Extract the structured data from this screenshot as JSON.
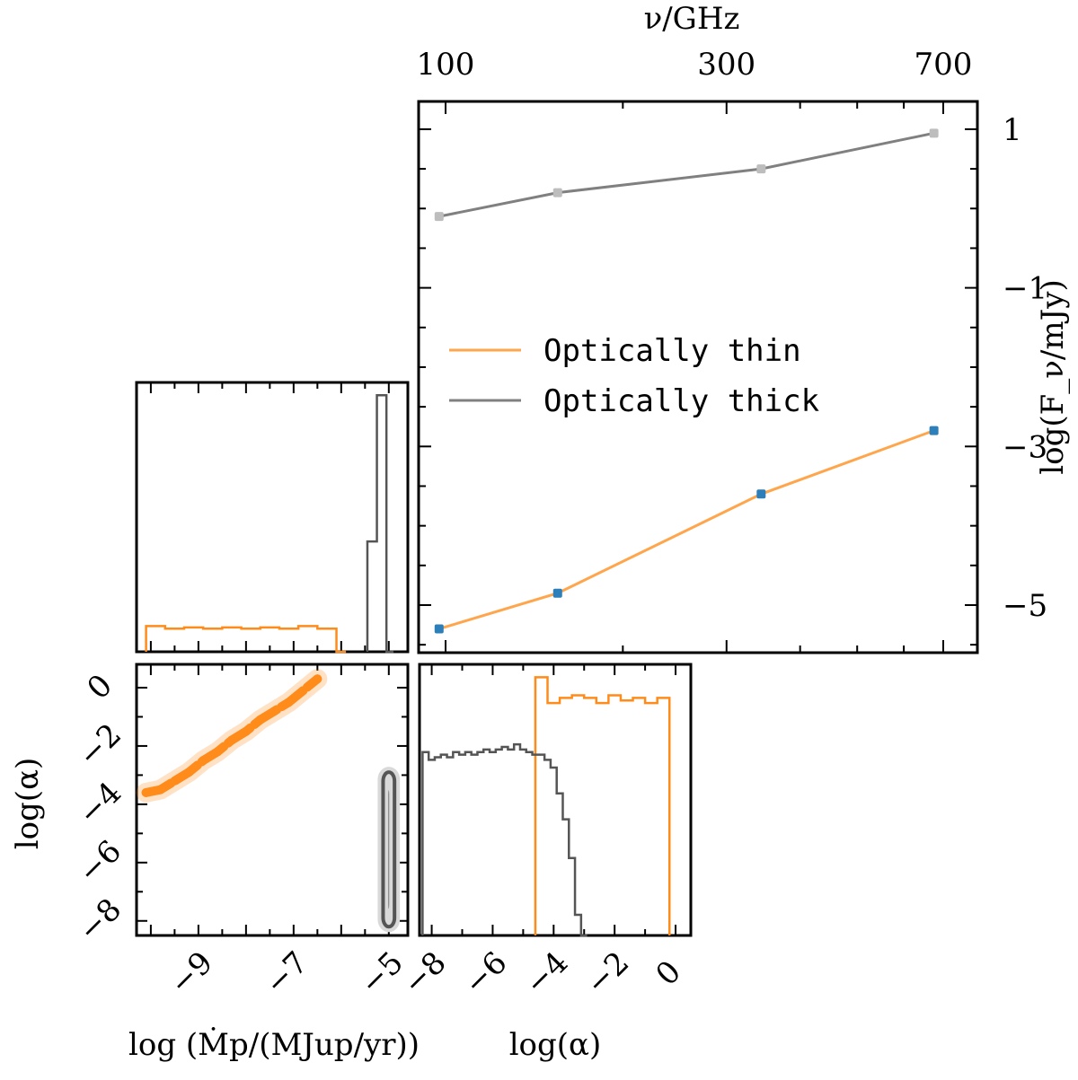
{
  "colors": {
    "thin": "#ff8c1a",
    "thick": "#555555",
    "thin_line": "#ffa64d",
    "thick_line": "#808080",
    "thin_marker": "#2c7fb8",
    "thick_marker": "#bdbdbd"
  },
  "chart_data": [
    {
      "id": "sed",
      "type": "line",
      "xlabel": "ν/GHz",
      "ylabel": "log(F_ν/mJy)",
      "x_scale": "log",
      "x_axis_position": "top",
      "y_axis_position": "right",
      "xlim": [
        90,
        800
      ],
      "ylim": [
        -5.6,
        1.35
      ],
      "x_ticks": [
        100,
        300,
        700
      ],
      "x_tick_labels": [
        "100",
        "300",
        "700"
      ],
      "y_ticks": [
        1,
        -1,
        -3,
        -5
      ],
      "y_tick_labels": [
        "1",
        "−1",
        "−3",
        "−5"
      ],
      "legend": {
        "placement": "center",
        "entries": [
          {
            "label": "Optically thin",
            "color": "#ffa64d"
          },
          {
            "label": "Optically thick",
            "color": "#808080"
          }
        ]
      },
      "series": [
        {
          "name": "Optically thin",
          "color": "#ffa64d",
          "marker_color": "#2c7fb8",
          "x": [
            97.5,
            155,
            343.5,
            675
          ],
          "y": [
            -5.3,
            -4.85,
            -3.6,
            -2.8
          ]
        },
        {
          "name": "Optically thick",
          "color": "#808080",
          "marker_color": "#bdbdbd",
          "x": [
            97.5,
            155,
            343.5,
            675
          ],
          "y": [
            -0.1,
            0.2,
            0.5,
            0.95
          ]
        }
      ]
    },
    {
      "id": "hist_mdot",
      "type": "histogram",
      "xlim": [
        -10.3,
        -4.6
      ],
      "ylim": [
        0,
        1.05
      ],
      "series": [
        {
          "name": "Optically thin",
          "color": "#ff8c1a",
          "bin_edges": [
            -10.1,
            -9.7,
            -9.3,
            -8.9,
            -8.5,
            -8.1,
            -7.7,
            -7.3,
            -6.9,
            -6.5,
            -6.1,
            -5.9
          ],
          "counts": [
            0.1,
            0.09,
            0.095,
            0.09,
            0.095,
            0.09,
            0.095,
            0.09,
            0.1,
            0.09,
            0.0
          ]
        },
        {
          "name": "Optically thick",
          "color": "#555555",
          "bin_edges": [
            -5.45,
            -5.25,
            -5.05,
            -4.9
          ],
          "counts": [
            0.43,
            1.0,
            0.0
          ]
        }
      ]
    },
    {
      "id": "corner_2d",
      "type": "scatter",
      "xlabel": "log (Ṁp/(MJup/yr))",
      "ylabel": "log(α)",
      "xlim": [
        -10.3,
        -4.6
      ],
      "ylim": [
        -8.5,
        0.8
      ],
      "x_ticks": [
        -9,
        -7,
        -5
      ],
      "x_tick_labels": [
        "−9",
        "−7",
        "−5"
      ],
      "y_ticks": [
        0,
        -2,
        -4,
        -6,
        -8
      ],
      "y_tick_labels": [
        "0",
        "−2",
        "−4",
        "−6",
        "−8"
      ],
      "series": [
        {
          "name": "Optically thin",
          "color": "#ff8c1a",
          "x": [
            -10.1,
            -9.8,
            -9.5,
            -9.2,
            -8.9,
            -8.6,
            -8.3,
            -8.0,
            -7.7,
            -7.4,
            -7.1,
            -6.8,
            -6.5
          ],
          "y": [
            -3.6,
            -3.5,
            -3.2,
            -2.9,
            -2.5,
            -2.2,
            -1.8,
            -1.5,
            -1.1,
            -0.8,
            -0.5,
            -0.1,
            0.3
          ]
        },
        {
          "name": "Optically thick",
          "color": "#555555",
          "x_center": -5.0,
          "x_half_width": 0.12,
          "y_range": [
            -8.2,
            -2.9
          ]
        }
      ]
    },
    {
      "id": "hist_alpha",
      "type": "histogram",
      "xlabel": "log(α)",
      "xlim": [
        -8.4,
        0.5
      ],
      "ylim": [
        0,
        1.05
      ],
      "x_ticks": [
        -8,
        -6,
        -4,
        -2,
        0
      ],
      "x_tick_labels": [
        "−8",
        "−6",
        "−4",
        "−2",
        "0"
      ],
      "series": [
        {
          "name": "Optically thin",
          "color": "#ff8c1a",
          "bin_edges": [
            -4.6,
            -4.2,
            -3.8,
            -3.4,
            -3.0,
            -2.6,
            -2.2,
            -1.8,
            -1.4,
            -1.0,
            -0.6,
            -0.2
          ],
          "counts": [
            1.0,
            0.9,
            0.92,
            0.93,
            0.92,
            0.9,
            0.93,
            0.91,
            0.92,
            0.9,
            0.92
          ]
        },
        {
          "name": "Optically thick",
          "color": "#555555",
          "bin_edges": [
            -8.3,
            -8.1,
            -7.9,
            -7.7,
            -7.5,
            -7.3,
            -7.1,
            -6.9,
            -6.7,
            -6.5,
            -6.3,
            -6.1,
            -5.9,
            -5.7,
            -5.5,
            -5.3,
            -5.1,
            -4.9,
            -4.7,
            -4.5,
            -4.3,
            -4.1,
            -3.9,
            -3.7,
            -3.5,
            -3.3,
            -3.1,
            -2.9
          ],
          "counts": [
            0.71,
            0.68,
            0.69,
            0.7,
            0.69,
            0.71,
            0.7,
            0.71,
            0.7,
            0.71,
            0.72,
            0.71,
            0.72,
            0.73,
            0.72,
            0.74,
            0.72,
            0.71,
            0.7,
            0.7,
            0.68,
            0.65,
            0.55,
            0.45,
            0.3,
            0.08,
            0.0
          ]
        }
      ]
    }
  ]
}
